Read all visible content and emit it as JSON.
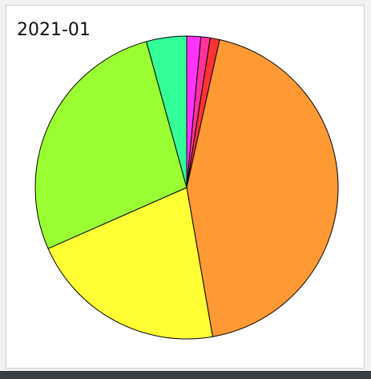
{
  "chart_data": {
    "type": "pie",
    "title": "2021-01",
    "slices": [
      {
        "value": 1.5,
        "color": "#ff33ff"
      },
      {
        "value": 1.0,
        "color": "#ff3399"
      },
      {
        "value": 1.0,
        "color": "#ff3333"
      },
      {
        "value": 43.9,
        "color": "#ff9933"
      },
      {
        "value": 21.2,
        "color": "#ffff33"
      },
      {
        "value": 27.4,
        "color": "#99ff33"
      },
      {
        "value": 4.3,
        "color": "#33ff99"
      }
    ],
    "start": "top",
    "direction": "clockwise",
    "stroke": "#000000"
  }
}
